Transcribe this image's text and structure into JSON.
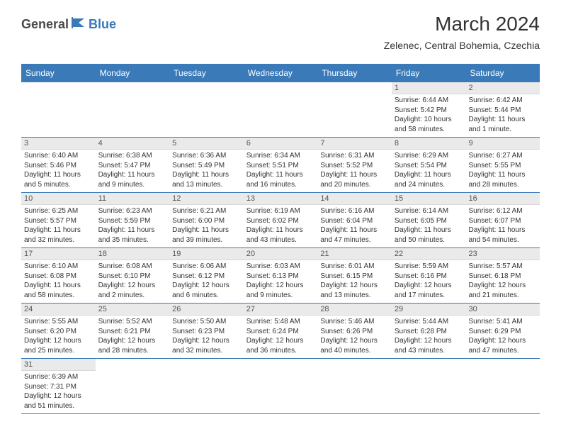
{
  "logo": {
    "part1": "General",
    "part2": "Blue"
  },
  "title": "March 2024",
  "location": "Zelenec, Central Bohemia, Czechia",
  "colors": {
    "header_bg": "#3a7ab8",
    "header_text": "#ffffff",
    "daynum_bg": "#eaeaea",
    "row_border": "#3a7ab8",
    "logo_gray": "#4a4a4a",
    "logo_blue": "#3a7ab8"
  },
  "dow": [
    "Sunday",
    "Monday",
    "Tuesday",
    "Wednesday",
    "Thursday",
    "Friday",
    "Saturday"
  ],
  "weeks": [
    [
      null,
      null,
      null,
      null,
      null,
      {
        "n": "1",
        "sr": "Sunrise: 6:44 AM",
        "ss": "Sunset: 5:42 PM",
        "dl": "Daylight: 10 hours and 58 minutes."
      },
      {
        "n": "2",
        "sr": "Sunrise: 6:42 AM",
        "ss": "Sunset: 5:44 PM",
        "dl": "Daylight: 11 hours and 1 minute."
      }
    ],
    [
      {
        "n": "3",
        "sr": "Sunrise: 6:40 AM",
        "ss": "Sunset: 5:46 PM",
        "dl": "Daylight: 11 hours and 5 minutes."
      },
      {
        "n": "4",
        "sr": "Sunrise: 6:38 AM",
        "ss": "Sunset: 5:47 PM",
        "dl": "Daylight: 11 hours and 9 minutes."
      },
      {
        "n": "5",
        "sr": "Sunrise: 6:36 AM",
        "ss": "Sunset: 5:49 PM",
        "dl": "Daylight: 11 hours and 13 minutes."
      },
      {
        "n": "6",
        "sr": "Sunrise: 6:34 AM",
        "ss": "Sunset: 5:51 PM",
        "dl": "Daylight: 11 hours and 16 minutes."
      },
      {
        "n": "7",
        "sr": "Sunrise: 6:31 AM",
        "ss": "Sunset: 5:52 PM",
        "dl": "Daylight: 11 hours and 20 minutes."
      },
      {
        "n": "8",
        "sr": "Sunrise: 6:29 AM",
        "ss": "Sunset: 5:54 PM",
        "dl": "Daylight: 11 hours and 24 minutes."
      },
      {
        "n": "9",
        "sr": "Sunrise: 6:27 AM",
        "ss": "Sunset: 5:55 PM",
        "dl": "Daylight: 11 hours and 28 minutes."
      }
    ],
    [
      {
        "n": "10",
        "sr": "Sunrise: 6:25 AM",
        "ss": "Sunset: 5:57 PM",
        "dl": "Daylight: 11 hours and 32 minutes."
      },
      {
        "n": "11",
        "sr": "Sunrise: 6:23 AM",
        "ss": "Sunset: 5:59 PM",
        "dl": "Daylight: 11 hours and 35 minutes."
      },
      {
        "n": "12",
        "sr": "Sunrise: 6:21 AM",
        "ss": "Sunset: 6:00 PM",
        "dl": "Daylight: 11 hours and 39 minutes."
      },
      {
        "n": "13",
        "sr": "Sunrise: 6:19 AM",
        "ss": "Sunset: 6:02 PM",
        "dl": "Daylight: 11 hours and 43 minutes."
      },
      {
        "n": "14",
        "sr": "Sunrise: 6:16 AM",
        "ss": "Sunset: 6:04 PM",
        "dl": "Daylight: 11 hours and 47 minutes."
      },
      {
        "n": "15",
        "sr": "Sunrise: 6:14 AM",
        "ss": "Sunset: 6:05 PM",
        "dl": "Daylight: 11 hours and 50 minutes."
      },
      {
        "n": "16",
        "sr": "Sunrise: 6:12 AM",
        "ss": "Sunset: 6:07 PM",
        "dl": "Daylight: 11 hours and 54 minutes."
      }
    ],
    [
      {
        "n": "17",
        "sr": "Sunrise: 6:10 AM",
        "ss": "Sunset: 6:08 PM",
        "dl": "Daylight: 11 hours and 58 minutes."
      },
      {
        "n": "18",
        "sr": "Sunrise: 6:08 AM",
        "ss": "Sunset: 6:10 PM",
        "dl": "Daylight: 12 hours and 2 minutes."
      },
      {
        "n": "19",
        "sr": "Sunrise: 6:06 AM",
        "ss": "Sunset: 6:12 PM",
        "dl": "Daylight: 12 hours and 6 minutes."
      },
      {
        "n": "20",
        "sr": "Sunrise: 6:03 AM",
        "ss": "Sunset: 6:13 PM",
        "dl": "Daylight: 12 hours and 9 minutes."
      },
      {
        "n": "21",
        "sr": "Sunrise: 6:01 AM",
        "ss": "Sunset: 6:15 PM",
        "dl": "Daylight: 12 hours and 13 minutes."
      },
      {
        "n": "22",
        "sr": "Sunrise: 5:59 AM",
        "ss": "Sunset: 6:16 PM",
        "dl": "Daylight: 12 hours and 17 minutes."
      },
      {
        "n": "23",
        "sr": "Sunrise: 5:57 AM",
        "ss": "Sunset: 6:18 PM",
        "dl": "Daylight: 12 hours and 21 minutes."
      }
    ],
    [
      {
        "n": "24",
        "sr": "Sunrise: 5:55 AM",
        "ss": "Sunset: 6:20 PM",
        "dl": "Daylight: 12 hours and 25 minutes."
      },
      {
        "n": "25",
        "sr": "Sunrise: 5:52 AM",
        "ss": "Sunset: 6:21 PM",
        "dl": "Daylight: 12 hours and 28 minutes."
      },
      {
        "n": "26",
        "sr": "Sunrise: 5:50 AM",
        "ss": "Sunset: 6:23 PM",
        "dl": "Daylight: 12 hours and 32 minutes."
      },
      {
        "n": "27",
        "sr": "Sunrise: 5:48 AM",
        "ss": "Sunset: 6:24 PM",
        "dl": "Daylight: 12 hours and 36 minutes."
      },
      {
        "n": "28",
        "sr": "Sunrise: 5:46 AM",
        "ss": "Sunset: 6:26 PM",
        "dl": "Daylight: 12 hours and 40 minutes."
      },
      {
        "n": "29",
        "sr": "Sunrise: 5:44 AM",
        "ss": "Sunset: 6:28 PM",
        "dl": "Daylight: 12 hours and 43 minutes."
      },
      {
        "n": "30",
        "sr": "Sunrise: 5:41 AM",
        "ss": "Sunset: 6:29 PM",
        "dl": "Daylight: 12 hours and 47 minutes."
      }
    ],
    [
      {
        "n": "31",
        "sr": "Sunrise: 6:39 AM",
        "ss": "Sunset: 7:31 PM",
        "dl": "Daylight: 12 hours and 51 minutes."
      },
      null,
      null,
      null,
      null,
      null,
      null
    ]
  ]
}
